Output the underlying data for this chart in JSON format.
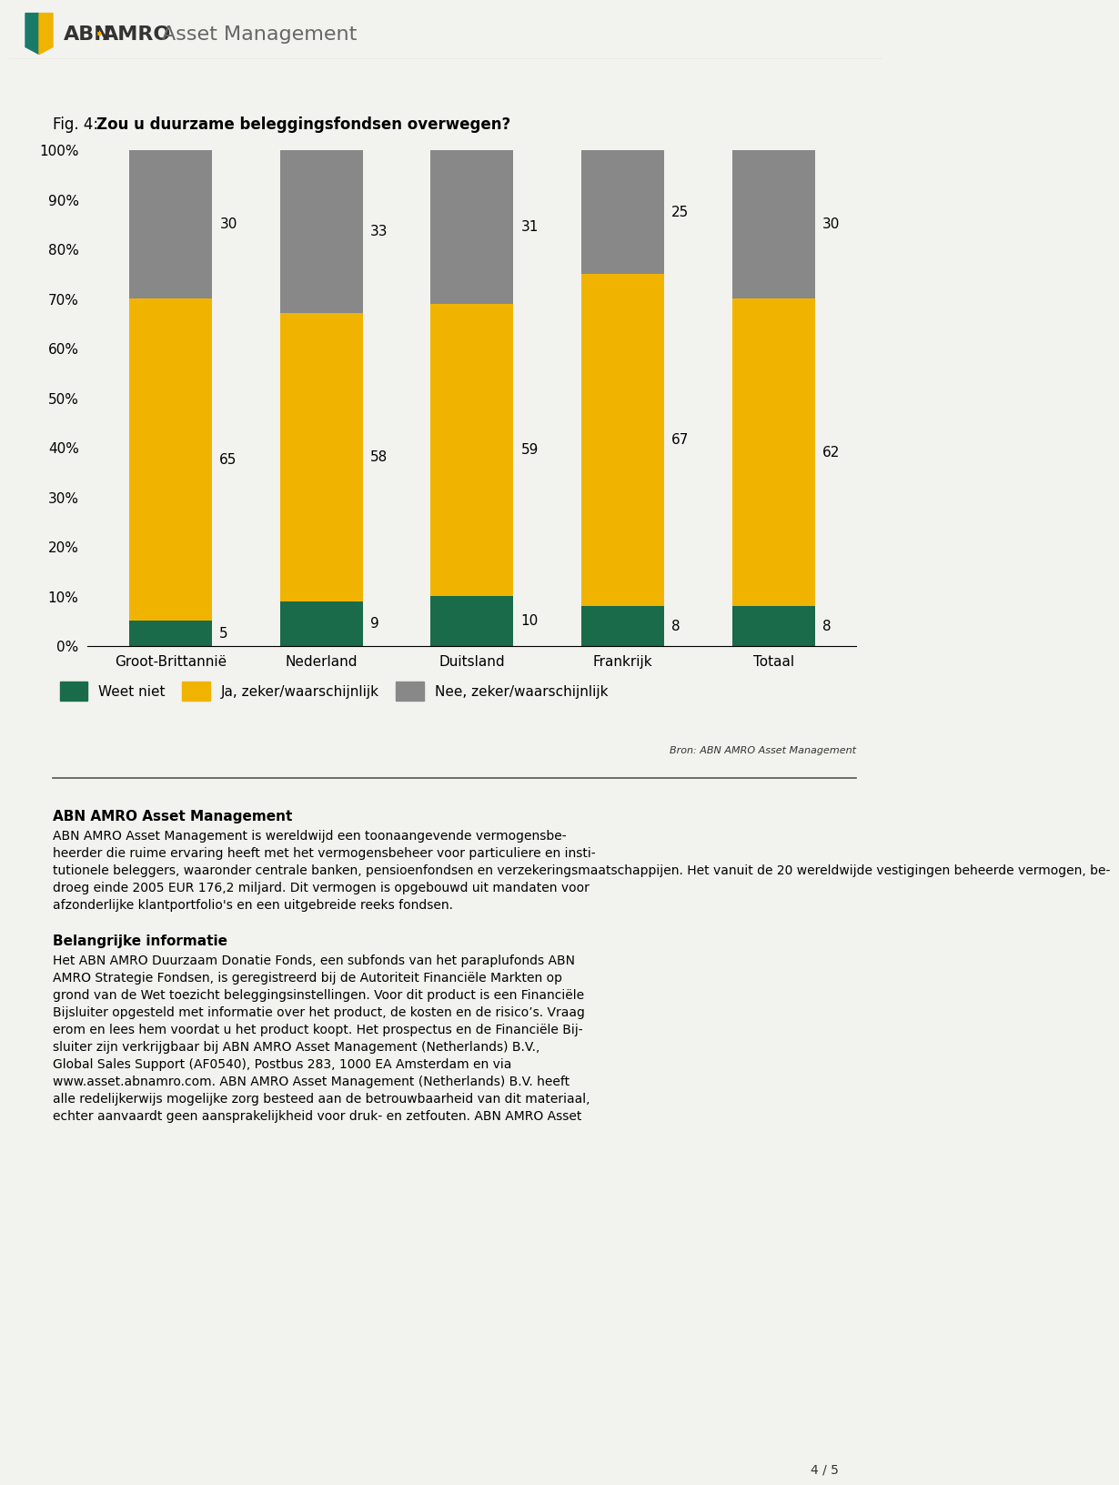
{
  "title_prefix": "Fig. 4: ",
  "title_bold": "Zou u duurzame beleggingsfondsen overwegen?",
  "categories": [
    "Groot-Brittannië",
    "Nederland",
    "Duitsland",
    "Frankrijk",
    "Totaal"
  ],
  "weet_niet": [
    5,
    9,
    10,
    8,
    8
  ],
  "ja_zeker": [
    65,
    58,
    59,
    67,
    62
  ],
  "nee_zeker": [
    30,
    33,
    31,
    25,
    30
  ],
  "color_weet_niet": "#1a6b4a",
  "color_ja_zeker": "#f0b400",
  "color_nee_zeker": "#888888",
  "legend_labels": [
    "Weet niet",
    "Ja, zeker/waarschijnlijk",
    "Nee, zeker/waarschijnlijk"
  ],
  "source_text": "Bron: ABN AMRO Asset Management",
  "body_title": "ABN AMRO Asset Management",
  "body_text1_lines": [
    "ABN AMRO Asset Management is wereldwijd een toonaangevende vermogensbe-",
    "heerder die ruime ervaring heeft met het vermogensbeheer voor particuliere en insti-",
    "tutionele beleggers, waaronder centrale banken, pensioenfondsen en verzekeringsmaatschappijen. Het vanuit de 20 wereldwijde vestigingen beheerde vermogen, be-",
    "droeg einde 2005 EUR 176,2 miljard. Dit vermogen is opgebouwd uit mandaten voor",
    "afzonderlijke klantportfolio's en een uitgebreide reeks fondsen."
  ],
  "body_title2": "Belangrijke informatie",
  "body_text2_lines": [
    "Het ABN AMRO Duurzaam Donatie Fonds, een subfonds van het paraplufonds ABN",
    "AMRO Strategie Fondsen, is geregistreerd bij de Autoriteit Financiële Markten op",
    "grond van de Wet toezicht beleggingsinstellingen. Voor dit product is een Financiële",
    "Bijsluiter opgesteld met informatie over het product, de kosten en de risico’s. Vraag",
    "erom en lees hem voordat u het product koopt. Het prospectus en de Financiële Bij-",
    "sluiter zijn verkrijgbaar bij ABN AMRO Asset Management (Netherlands) B.V.,",
    "Global Sales Support (AF0540), Postbus 283, 1000 EA Amsterdam en via",
    "www.asset.abnamro.com. ABN AMRO Asset Management (Netherlands) B.V. heeft",
    "alle redelijkerwijs mogelijke zorg besteed aan de betrouwbaarheid van dit materiaal,",
    "echter aanvaardt geen aansprakelijkheid voor druk- en zetfouten. ABN AMRO Asset"
  ],
  "page_text": "4 / 5",
  "background_color": "#f2f2ee",
  "header_bg": "#ffffff",
  "bar_width": 0.55
}
